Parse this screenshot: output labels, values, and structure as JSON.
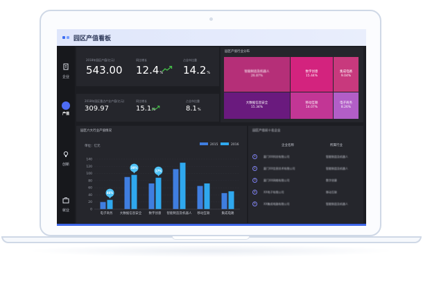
{
  "app": {
    "title": "园区产值看板"
  },
  "sidebar": {
    "items": [
      {
        "label": "企业",
        "icon": "building-icon",
        "active": false
      },
      {
        "label": "产值",
        "icon": "pie-chart-icon",
        "active": true
      },
      {
        "label": "创新",
        "icon": "bulb-icon",
        "active": false
      },
      {
        "label": "就业",
        "icon": "briefcase-icon",
        "active": false
      }
    ]
  },
  "kpi_top": {
    "caption_total": "2018年园区产值(亿元)",
    "total": "543.00",
    "caption_growth": "同比增长",
    "growth": "12.4",
    "growth_unit": "%",
    "caption_share": "占全市比重",
    "share": "14.2",
    "share_unit": "%"
  },
  "kpi_bottom": {
    "caption_total": "2018年园区重点产业产值(亿元)",
    "total": "309.97",
    "caption_growth": "同比增长",
    "growth": "15.1",
    "growth_unit": "%",
    "caption_share": "占全市比重",
    "share": "8.1",
    "share_unit": "%"
  },
  "treemap": {
    "title": "园区产值行业分布",
    "tiles": [
      {
        "label": "智能制造及机器人",
        "value": "26.87%",
        "color": "#b52f78"
      },
      {
        "label": "数字创意",
        "value": "15.44%",
        "color": "#d3237e"
      },
      {
        "label": "集成电路",
        "value": "9.04%",
        "color": "#c8397d"
      },
      {
        "label": "大数据信息安全",
        "value": "15.34%",
        "color": "#6a1a7e"
      },
      {
        "label": "移动互联",
        "value": "14.07%",
        "color": "#c23695"
      },
      {
        "label": "电子商务",
        "value": "8.26%",
        "color": "#b25ec7"
      }
    ]
  },
  "bar_panel": {
    "title": "园区六大行业产值情况"
  },
  "chart_data": {
    "type": "bar",
    "ylabel": "单位：亿元",
    "ylim": [
      0,
      140
    ],
    "yticks": [
      0,
      20,
      40,
      60,
      80,
      100,
      120,
      140
    ],
    "categories": [
      "电子商务",
      "大数据信息安全",
      "数字创意",
      "智能制造及机器人",
      "移动互联",
      "集成电路"
    ],
    "series": [
      {
        "name": "2015",
        "color": "#3f7ee0",
        "values": [
          20,
          90,
          72,
          112,
          65,
          45
        ]
      },
      {
        "name": "2016",
        "color": "#2fa8ee",
        "values": [
          26,
          96,
          88,
          130,
          72,
          50
        ]
      }
    ],
    "callouts": [
      {
        "category_index": 0,
        "label": "46%"
      },
      {
        "category_index": 1,
        "label": "38%"
      },
      {
        "category_index": 2,
        "label": "17%"
      }
    ]
  },
  "table_panel": {
    "title": "园区产值前十名企业",
    "headers": [
      "企业名称",
      "所属行业"
    ],
    "rows": [
      {
        "num": "1",
        "company": "厦门XX科技有限公司",
        "industry": "智能制造及机器人"
      },
      {
        "num": "2",
        "company": "厦门XX信息技术有限公司",
        "industry": "智能制造及机器人"
      },
      {
        "num": "3",
        "company": "厦门XX网络有限公司",
        "industry": "数字创意"
      },
      {
        "num": "4",
        "company": "XX电子有限公司",
        "industry": "移动互联"
      },
      {
        "num": "5",
        "company": "XX集成电路有限公司",
        "industry": "智能制造及机器人"
      }
    ]
  }
}
